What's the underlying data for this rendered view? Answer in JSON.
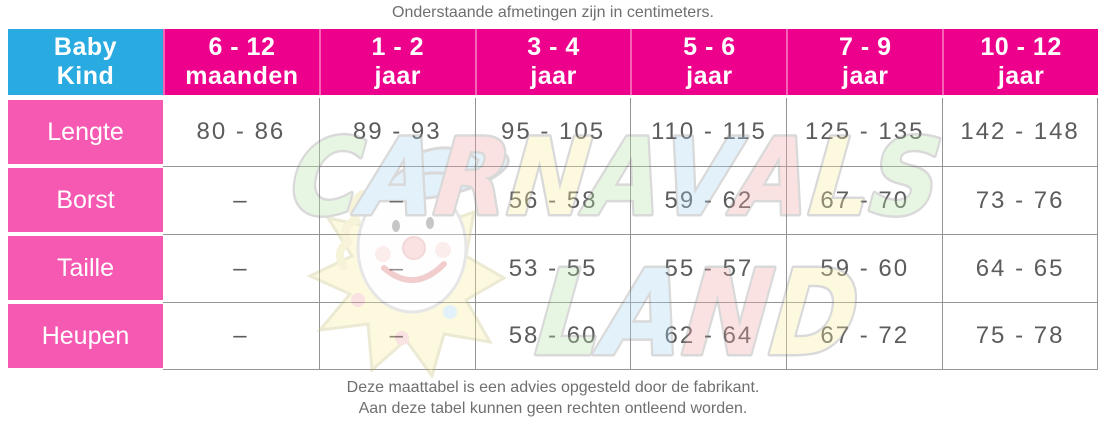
{
  "title": "Onderstaande afmetingen zijn in centimeters.",
  "footer": {
    "line1": "Deze maattabel is een advies opgesteld door de fabrikant.",
    "line2": "Aan deze tabel kunnen geen rechten ontleend worden."
  },
  "colors": {
    "corner_bg": "#29abe2",
    "header_bg": "#ec008c",
    "row_label_bg": "#f559b2",
    "data_text": "#5c5c5c",
    "note_text": "#6f6f6f",
    "grid_line": "#949494"
  },
  "watermark": {
    "word_top": "CARNAVALS",
    "word_bottom": "LAND",
    "letter_colors": [
      "#b9e4a9",
      "#a9d5f1",
      "#f1a9a9",
      "#f6eda1"
    ]
  },
  "chart_data": {
    "type": "table",
    "title": "Onderstaande afmetingen zijn in centimeters.",
    "unit": "cm",
    "corner": {
      "top": "Baby",
      "bottom": "Kind"
    },
    "columns": [
      {
        "top": "6 - 12",
        "bottom": "maanden"
      },
      {
        "top": "1 - 2",
        "bottom": "jaar"
      },
      {
        "top": "3 - 4",
        "bottom": "jaar"
      },
      {
        "top": "5 - 6",
        "bottom": "jaar"
      },
      {
        "top": "7 - 9",
        "bottom": "jaar"
      },
      {
        "top": "10 - 12",
        "bottom": "jaar"
      }
    ],
    "rows": [
      {
        "label": "Lengte",
        "values": [
          "80 - 86",
          "89 - 93",
          "95 - 105",
          "110 - 115",
          "125 - 135",
          "142 - 148"
        ]
      },
      {
        "label": "Borst",
        "values": [
          "–",
          "–",
          "56 - 58",
          "59 - 62",
          "67 - 70",
          "73 - 76"
        ]
      },
      {
        "label": "Taille",
        "values": [
          "–",
          "–",
          "53 - 55",
          "55 - 57",
          "59 - 60",
          "64 - 65"
        ]
      },
      {
        "label": "Heupen",
        "values": [
          "–",
          "–",
          "58 - 60",
          "62 - 64",
          "67 - 72",
          "75 - 78"
        ]
      }
    ],
    "notes": [
      "Deze maattabel is een advies opgesteld door de fabrikant.",
      "Aan deze tabel kunnen geen rechten ontleend worden."
    ]
  }
}
